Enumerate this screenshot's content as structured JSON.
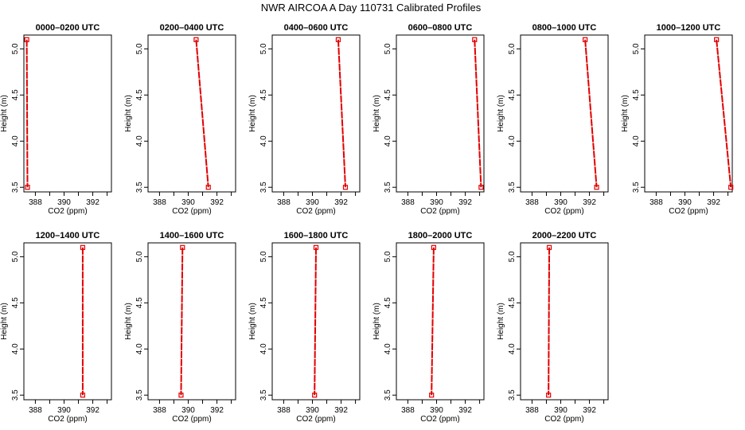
{
  "title": "NWR AIRCOA A  Day 110731  Calibrated Profiles",
  "chart_data": {
    "type": "line",
    "xlabel": "CO2 (ppm)",
    "ylabel": "Height (m)",
    "xticks": [
      388,
      390,
      392
    ],
    "yticks": [
      3.5,
      4.0,
      4.5,
      5.0
    ],
    "ytick_labels": [
      "3.5",
      "4.0",
      "4.5",
      "5.0"
    ],
    "xlim": [
      387.2,
      393.3
    ],
    "ylim": [
      3.45,
      5.15
    ],
    "series_color": "#e00000",
    "panels": [
      {
        "title": "0000–0200 UTC",
        "points": [
          {
            "x": 387.4,
            "y": 5.1
          },
          {
            "x": 387.45,
            "y": 3.5
          }
        ]
      },
      {
        "title": "0200–0400 UTC",
        "points": [
          {
            "x": 390.55,
            "y": 5.1
          },
          {
            "x": 391.4,
            "y": 3.5
          }
        ]
      },
      {
        "title": "0400–0600 UTC",
        "points": [
          {
            "x": 391.8,
            "y": 5.1
          },
          {
            "x": 392.3,
            "y": 3.5
          }
        ]
      },
      {
        "title": "0600–0800 UTC",
        "points": [
          {
            "x": 392.65,
            "y": 5.1
          },
          {
            "x": 393.1,
            "y": 3.5
          }
        ]
      },
      {
        "title": "0800–1000 UTC",
        "points": [
          {
            "x": 391.7,
            "y": 5.1
          },
          {
            "x": 392.5,
            "y": 3.5
          }
        ]
      },
      {
        "title": "1000–1200 UTC",
        "points": [
          {
            "x": 392.2,
            "y": 5.1
          },
          {
            "x": 393.2,
            "y": 3.5
          }
        ]
      },
      {
        "title": "1200–1400 UTC",
        "points": [
          {
            "x": 391.3,
            "y": 5.1
          },
          {
            "x": 391.3,
            "y": 3.5
          }
        ]
      },
      {
        "title": "1400–1600 UTC",
        "points": [
          {
            "x": 389.6,
            "y": 5.1
          },
          {
            "x": 389.5,
            "y": 3.5
          }
        ]
      },
      {
        "title": "1600–1800 UTC",
        "points": [
          {
            "x": 390.25,
            "y": 5.1
          },
          {
            "x": 390.15,
            "y": 3.5
          }
        ]
      },
      {
        "title": "1800–2000 UTC",
        "points": [
          {
            "x": 389.8,
            "y": 5.1
          },
          {
            "x": 389.65,
            "y": 3.5
          }
        ]
      },
      {
        "title": "2000–2200 UTC",
        "points": [
          {
            "x": 389.2,
            "y": 5.1
          },
          {
            "x": 389.15,
            "y": 3.5
          }
        ]
      }
    ]
  }
}
